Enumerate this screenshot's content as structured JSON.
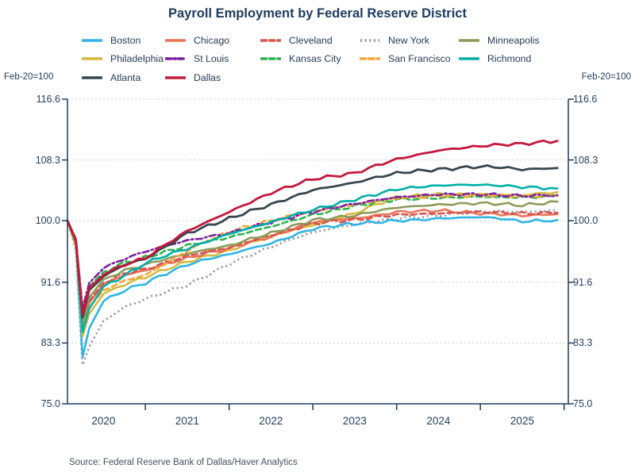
{
  "chart": {
    "colors": {
      "axis": "#1f3b5c",
      "grid": "#cccccc",
      "title": "#1d3a5f",
      "tick_text": "#1f3b5c"
    }
  },
  "chart_data": {
    "type": "line",
    "title": "Payroll Employment by Federal Reserve District",
    "unit_note": "Feb-20=100",
    "source": "Source:  Federal Reserve Bank of Dallas/Haver Analytics",
    "x_label_years": [
      "2020",
      "2021",
      "2022",
      "2023",
      "2024",
      "2025"
    ],
    "y_ticks": [
      "116.6",
      "108.3",
      "100.0",
      "91.6",
      "83.3",
      "75.0"
    ],
    "ylim": [
      75.0,
      116.6
    ],
    "xlim_years": [
      2020.07,
      2026.05
    ],
    "grid": "dotted-horizontal",
    "legend_position": "top",
    "x": [
      2020.07,
      2020.17,
      2020.25,
      2020.33,
      2020.5,
      2020.75,
      2021.0,
      2021.25,
      2021.5,
      2021.75,
      2022.0,
      2022.25,
      2022.5,
      2022.75,
      2023.0,
      2023.25,
      2023.5,
      2023.75,
      2024.0,
      2024.25,
      2024.5,
      2024.75,
      2025.0,
      2025.25,
      2025.5,
      2025.92
    ],
    "series": [
      {
        "name": "Boston",
        "color": "#2fb4e9",
        "style": "solid",
        "values": [
          100,
          97.0,
          81.4,
          85.3,
          89.0,
          90.5,
          91.5,
          92.8,
          94.0,
          94.8,
          95.4,
          96.2,
          96.9,
          97.9,
          98.9,
          99.3,
          99.6,
          99.8,
          100.0,
          100.1,
          100.3,
          100.4,
          100.5,
          100.3,
          99.9,
          100.1
        ]
      },
      {
        "name": "Chicago",
        "color": "#e87358",
        "style": "solid",
        "values": [
          100,
          97.2,
          85.6,
          88.8,
          91.3,
          92.6,
          93.2,
          94.1,
          94.9,
          95.6,
          96.2,
          97.1,
          97.8,
          98.8,
          99.8,
          100.1,
          100.3,
          100.7,
          101.2,
          101.3,
          101.4,
          101.2,
          101.0,
          100.9,
          100.7,
          100.9
        ]
      },
      {
        "name": "Cleveland",
        "color": "#d9534f",
        "style": "dashed",
        "values": [
          100,
          96.8,
          85.3,
          89.0,
          91.5,
          92.8,
          93.4,
          94.3,
          95.2,
          95.8,
          96.3,
          97.2,
          98.0,
          98.8,
          99.6,
          99.9,
          100.1,
          100.5,
          100.8,
          100.9,
          101.0,
          101.1,
          101.2,
          101.1,
          101.0,
          101.1
        ]
      },
      {
        "name": "New York",
        "color": "#9b9b9b",
        "style": "dotted",
        "values": [
          100,
          96.0,
          80.3,
          82.8,
          86.3,
          88.2,
          89.3,
          90.3,
          91.2,
          92.6,
          94.1,
          95.3,
          96.4,
          97.5,
          98.4,
          99.0,
          99.5,
          99.9,
          100.3,
          100.5,
          100.7,
          101.0,
          101.3,
          101.3,
          101.2,
          101.4
        ]
      },
      {
        "name": "Minneapolis",
        "color": "#8c9c5a",
        "style": "solid",
        "values": [
          100,
          97.0,
          86.2,
          89.5,
          92.0,
          93.2,
          94.0,
          94.8,
          95.5,
          96.1,
          96.6,
          97.5,
          98.3,
          99.2,
          100.1,
          100.4,
          100.7,
          101.3,
          101.8,
          102.0,
          102.2,
          102.3,
          102.4,
          102.3,
          102.1,
          102.6
        ]
      },
      {
        "name": "Philadelphia",
        "color": "#d4b93c",
        "style": "solid",
        "values": [
          100,
          96.5,
          84.2,
          87.3,
          90.0,
          91.3,
          92.3,
          93.4,
          94.4,
          95.2,
          95.9,
          97.0,
          97.9,
          98.7,
          99.4,
          100.2,
          101.0,
          102.2,
          103.2,
          103.4,
          103.6,
          103.6,
          103.6,
          103.5,
          103.5,
          103.9
        ]
      },
      {
        "name": "St Louis",
        "color": "#7d1fa0",
        "style": "dashdot",
        "values": [
          100,
          97.5,
          88.0,
          91.5,
          93.5,
          94.8,
          95.8,
          96.6,
          97.3,
          97.8,
          98.3,
          99.1,
          99.8,
          100.5,
          101.2,
          101.8,
          102.3,
          102.8,
          103.2,
          103.4,
          103.6,
          103.6,
          103.6,
          103.5,
          103.4,
          103.5
        ]
      },
      {
        "name": "Kansas City",
        "color": "#2eb34c",
        "style": "dashed",
        "values": [
          100,
          97.4,
          87.6,
          91.0,
          93.0,
          94.3,
          95.0,
          95.8,
          96.6,
          97.2,
          97.7,
          98.5,
          99.2,
          100.0,
          100.8,
          101.4,
          102.0,
          102.5,
          102.9,
          103.0,
          103.1,
          103.2,
          103.3,
          103.2,
          103.2,
          103.3
        ]
      },
      {
        "name": "San Francisco",
        "color": "#f3a63c",
        "style": "dashed",
        "values": [
          100,
          96.9,
          85.2,
          88.2,
          90.5,
          91.8,
          92.6,
          94.2,
          95.9,
          97.3,
          98.5,
          99.3,
          100.0,
          100.7,
          101.3,
          101.8,
          102.2,
          102.7,
          103.1,
          103.2,
          103.4,
          103.4,
          103.5,
          103.4,
          103.3,
          103.4
        ]
      },
      {
        "name": "Richmond",
        "color": "#00b0a8",
        "style": "solid",
        "values": [
          100,
          97.1,
          84.8,
          88.0,
          91.0,
          92.5,
          94.2,
          95.3,
          96.2,
          97.2,
          98.2,
          99.0,
          99.8,
          100.7,
          101.5,
          102.2,
          102.9,
          103.6,
          104.3,
          104.6,
          104.8,
          104.9,
          104.9,
          104.8,
          104.6,
          104.4
        ]
      },
      {
        "name": "Atlanta",
        "color": "#37474f",
        "style": "solid",
        "values": [
          100,
          97.3,
          86.8,
          90.5,
          92.4,
          94.0,
          94.8,
          96.5,
          98.3,
          99.3,
          100.3,
          101.3,
          102.2,
          103.2,
          104.2,
          104.7,
          105.2,
          105.9,
          106.5,
          106.8,
          107.0,
          107.2,
          107.4,
          107.3,
          107.0,
          107.2
        ]
      },
      {
        "name": "Dallas",
        "color": "#c4183c",
        "style": "solid",
        "values": [
          100,
          97.4,
          87.2,
          90.8,
          92.6,
          94.0,
          94.9,
          96.8,
          98.6,
          99.9,
          101.2,
          102.5,
          103.8,
          104.8,
          105.7,
          106.1,
          106.5,
          107.5,
          108.4,
          109.0,
          109.6,
          109.9,
          110.2,
          110.4,
          110.5,
          110.9
        ]
      }
    ]
  }
}
